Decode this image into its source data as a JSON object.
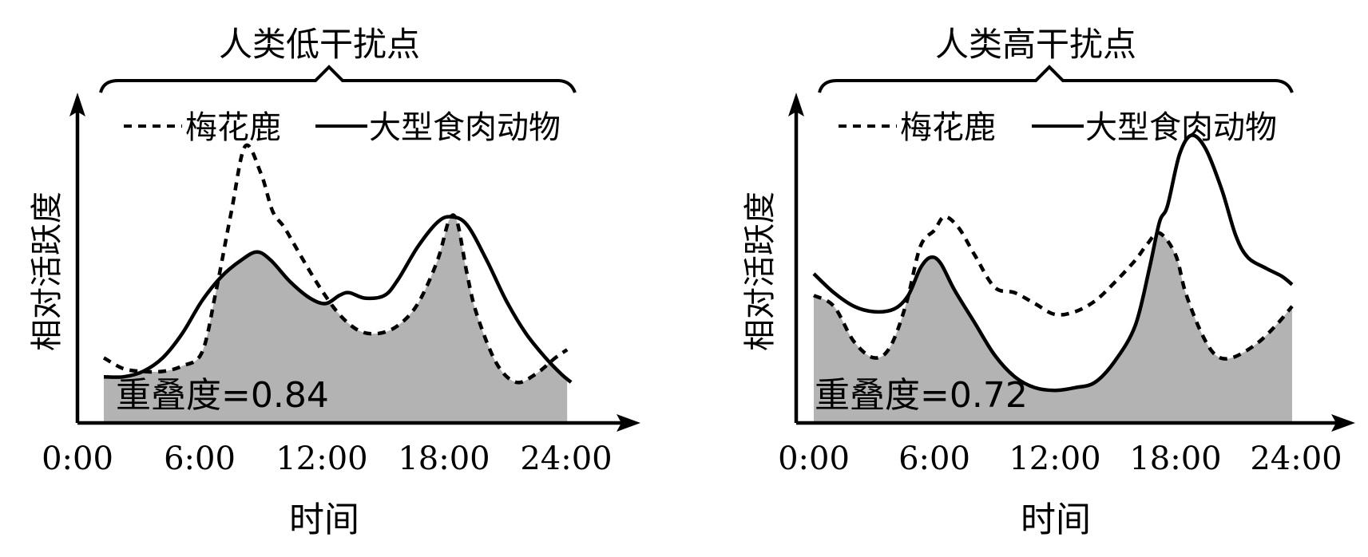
{
  "chart_data": [
    {
      "type": "area",
      "title": "人类低干扰点",
      "xlabel": "时间",
      "ylabel": "相对活跃度",
      "xlim": [
        0,
        24
      ],
      "ylim": [
        0,
        1
      ],
      "x_ticks": [
        "0:00",
        "6:00",
        "12:00",
        "18:00",
        "24:00"
      ],
      "overlap_label": "重叠度=0.84",
      "legend_position": "top",
      "series": [
        {
          "name": "梅花鹿",
          "style": "dashed",
          "points": [
            [
              0.0,
              0.24
            ],
            [
              1,
              0.2
            ],
            [
              2,
              0.19
            ],
            [
              3,
              0.19
            ],
            [
              4,
              0.21
            ],
            [
              5,
              0.26
            ],
            [
              5.7,
              0.48
            ],
            [
              6.5,
              0.78
            ],
            [
              7.2,
              1.02
            ],
            [
              8,
              0.92
            ],
            [
              8.6,
              0.78
            ],
            [
              9.2,
              0.72
            ],
            [
              10,
              0.62
            ],
            [
              11,
              0.5
            ],
            [
              12,
              0.4
            ],
            [
              13,
              0.34
            ],
            [
              14,
              0.33
            ],
            [
              15,
              0.36
            ],
            [
              16,
              0.44
            ],
            [
              17,
              0.6
            ],
            [
              17.6,
              0.75
            ],
            [
              18,
              0.74
            ],
            [
              18.5,
              0.55
            ],
            [
              19,
              0.4
            ],
            [
              20,
              0.22
            ],
            [
              21,
              0.15
            ],
            [
              22,
              0.18
            ],
            [
              23,
              0.24
            ],
            [
              23.6,
              0.27
            ]
          ]
        },
        {
          "name": "大型食肉动物",
          "style": "solid",
          "points": [
            [
              0,
              0.17
            ],
            [
              1,
              0.17
            ],
            [
              2,
              0.19
            ],
            [
              3,
              0.24
            ],
            [
              4,
              0.33
            ],
            [
              5,
              0.45
            ],
            [
              6,
              0.54
            ],
            [
              7,
              0.6
            ],
            [
              7.8,
              0.63
            ],
            [
              8.5,
              0.6
            ],
            [
              9.5,
              0.52
            ],
            [
              10.5,
              0.46
            ],
            [
              11.3,
              0.44
            ],
            [
              12,
              0.47
            ],
            [
              12.5,
              0.48
            ],
            [
              13.3,
              0.46
            ],
            [
              14.3,
              0.47
            ],
            [
              15,
              0.53
            ],
            [
              16,
              0.65
            ],
            [
              17,
              0.74
            ],
            [
              17.7,
              0.76
            ],
            [
              18.5,
              0.73
            ],
            [
              19.5,
              0.6
            ],
            [
              20.5,
              0.45
            ],
            [
              21.5,
              0.33
            ],
            [
              22.5,
              0.24
            ],
            [
              23.3,
              0.18
            ],
            [
              23.8,
              0.15
            ]
          ]
        }
      ]
    },
    {
      "type": "area",
      "title": "人类高干扰点",
      "xlabel": "时间",
      "ylabel": "相对活跃度",
      "xlim": [
        0,
        24
      ],
      "ylim": [
        0,
        1
      ],
      "x_ticks": [
        "0:00",
        "6:00",
        "12:00",
        "18:00",
        "24:00"
      ],
      "overlap_label": "重叠度=0.72",
      "legend_position": "top",
      "series": [
        {
          "name": "梅花鹿",
          "style": "dashed",
          "points": [
            [
              0,
              0.47
            ],
            [
              1,
              0.43
            ],
            [
              2,
              0.3
            ],
            [
              3,
              0.24
            ],
            [
              3.8,
              0.28
            ],
            [
              4.6,
              0.44
            ],
            [
              5.3,
              0.65
            ],
            [
              6,
              0.71
            ],
            [
              6.5,
              0.76
            ],
            [
              7.2,
              0.72
            ],
            [
              8,
              0.62
            ],
            [
              9,
              0.5
            ],
            [
              10,
              0.48
            ],
            [
              11,
              0.44
            ],
            [
              12,
              0.4
            ],
            [
              13,
              0.41
            ],
            [
              14,
              0.45
            ],
            [
              15,
              0.52
            ],
            [
              16,
              0.6
            ],
            [
              16.6,
              0.66
            ],
            [
              17.2,
              0.7
            ],
            [
              18,
              0.62
            ],
            [
              18.5,
              0.48
            ],
            [
              19.3,
              0.33
            ],
            [
              20,
              0.25
            ],
            [
              20.8,
              0.24
            ],
            [
              22,
              0.29
            ],
            [
              23,
              0.36
            ],
            [
              23.8,
              0.43
            ]
          ]
        },
        {
          "name": "大型食肉动物",
          "style": "solid",
          "points": [
            [
              0,
              0.55
            ],
            [
              1,
              0.48
            ],
            [
              2,
              0.43
            ],
            [
              3,
              0.41
            ],
            [
              4,
              0.42
            ],
            [
              4.7,
              0.47
            ],
            [
              5.3,
              0.57
            ],
            [
              5.8,
              0.61
            ],
            [
              6.3,
              0.59
            ],
            [
              7,
              0.49
            ],
            [
              8,
              0.37
            ],
            [
              9,
              0.25
            ],
            [
              10,
              0.17
            ],
            [
              11,
              0.13
            ],
            [
              12,
              0.12
            ],
            [
              13,
              0.13
            ],
            [
              14,
              0.15
            ],
            [
              15,
              0.23
            ],
            [
              16,
              0.36
            ],
            [
              16.7,
              0.57
            ],
            [
              17.2,
              0.74
            ],
            [
              17.6,
              0.8
            ],
            [
              18.2,
              0.99
            ],
            [
              18.8,
              1.06
            ],
            [
              19.5,
              1.01
            ],
            [
              20.3,
              0.86
            ],
            [
              21,
              0.69
            ],
            [
              21.6,
              0.61
            ],
            [
              22.5,
              0.57
            ],
            [
              23.3,
              0.54
            ],
            [
              23.8,
              0.51
            ]
          ]
        }
      ]
    }
  ]
}
